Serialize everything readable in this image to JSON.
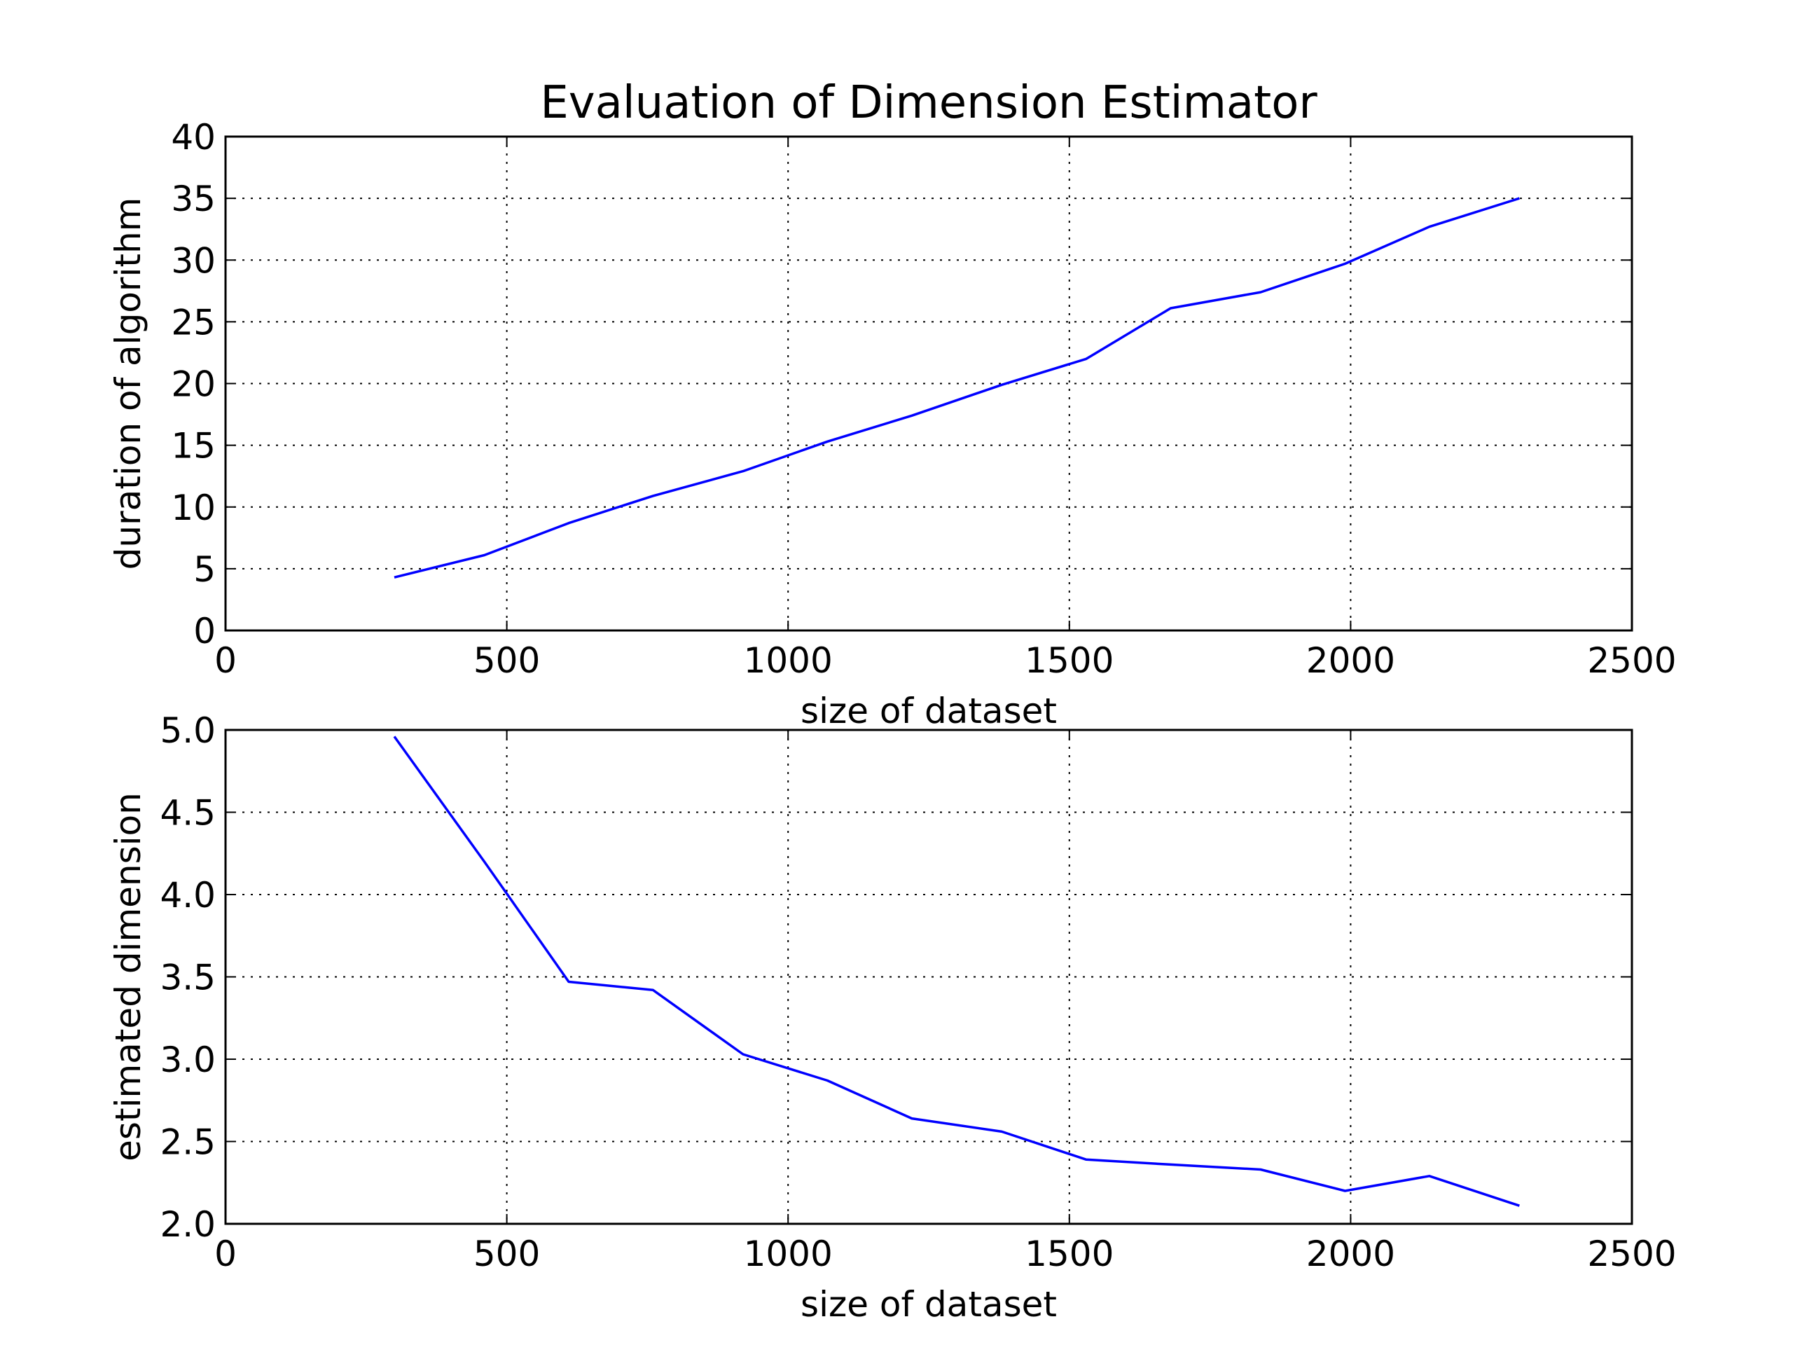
{
  "figure": {
    "title": "Evaluation of Dimension Estimator"
  },
  "chart_data": [
    {
      "type": "line",
      "title": "Evaluation of Dimension Estimator",
      "xlabel": "size of dataset",
      "ylabel": "duration of algorithm",
      "xlim": [
        0,
        2500
      ],
      "ylim": [
        0,
        40
      ],
      "xticks": [
        0,
        500,
        1000,
        1500,
        2000,
        2500
      ],
      "xtick_labels": [
        "0",
        "500",
        "1000",
        "1500",
        "2000",
        "2500"
      ],
      "yticks": [
        0,
        5,
        10,
        15,
        20,
        25,
        30,
        35,
        40
      ],
      "ytick_labels": [
        "0",
        "5",
        "10",
        "15",
        "20",
        "25",
        "30",
        "35",
        "40"
      ],
      "grid": true,
      "color": "#0000ff",
      "x": [
        300,
        460,
        610,
        760,
        920,
        1070,
        1220,
        1380,
        1530,
        1680,
        1840,
        1990,
        2140,
        2300
      ],
      "y": [
        4.3,
        6.1,
        8.7,
        10.9,
        12.9,
        15.3,
        17.4,
        19.9,
        22.0,
        26.1,
        27.4,
        29.7,
        32.7,
        35.0
      ]
    },
    {
      "type": "line",
      "title": "",
      "xlabel": "size of dataset",
      "ylabel": "estimated dimension",
      "xlim": [
        0,
        2500
      ],
      "ylim": [
        2.0,
        5.0
      ],
      "xticks": [
        0,
        500,
        1000,
        1500,
        2000,
        2500
      ],
      "xtick_labels": [
        "0",
        "500",
        "1000",
        "1500",
        "2000",
        "2500"
      ],
      "yticks": [
        2.0,
        2.5,
        3.0,
        3.5,
        4.0,
        4.5,
        5.0
      ],
      "ytick_labels": [
        "2.0",
        "2.5",
        "3.0",
        "3.5",
        "4.0",
        "4.5",
        "5.0"
      ],
      "grid": true,
      "color": "#0000ff",
      "x": [
        300,
        460,
        610,
        760,
        920,
        1070,
        1220,
        1380,
        1530,
        1680,
        1840,
        1990,
        2140,
        2300
      ],
      "y": [
        4.96,
        4.2,
        3.47,
        3.42,
        3.03,
        2.87,
        2.64,
        2.56,
        2.39,
        2.36,
        2.33,
        2.2,
        2.29,
        2.11
      ]
    }
  ]
}
